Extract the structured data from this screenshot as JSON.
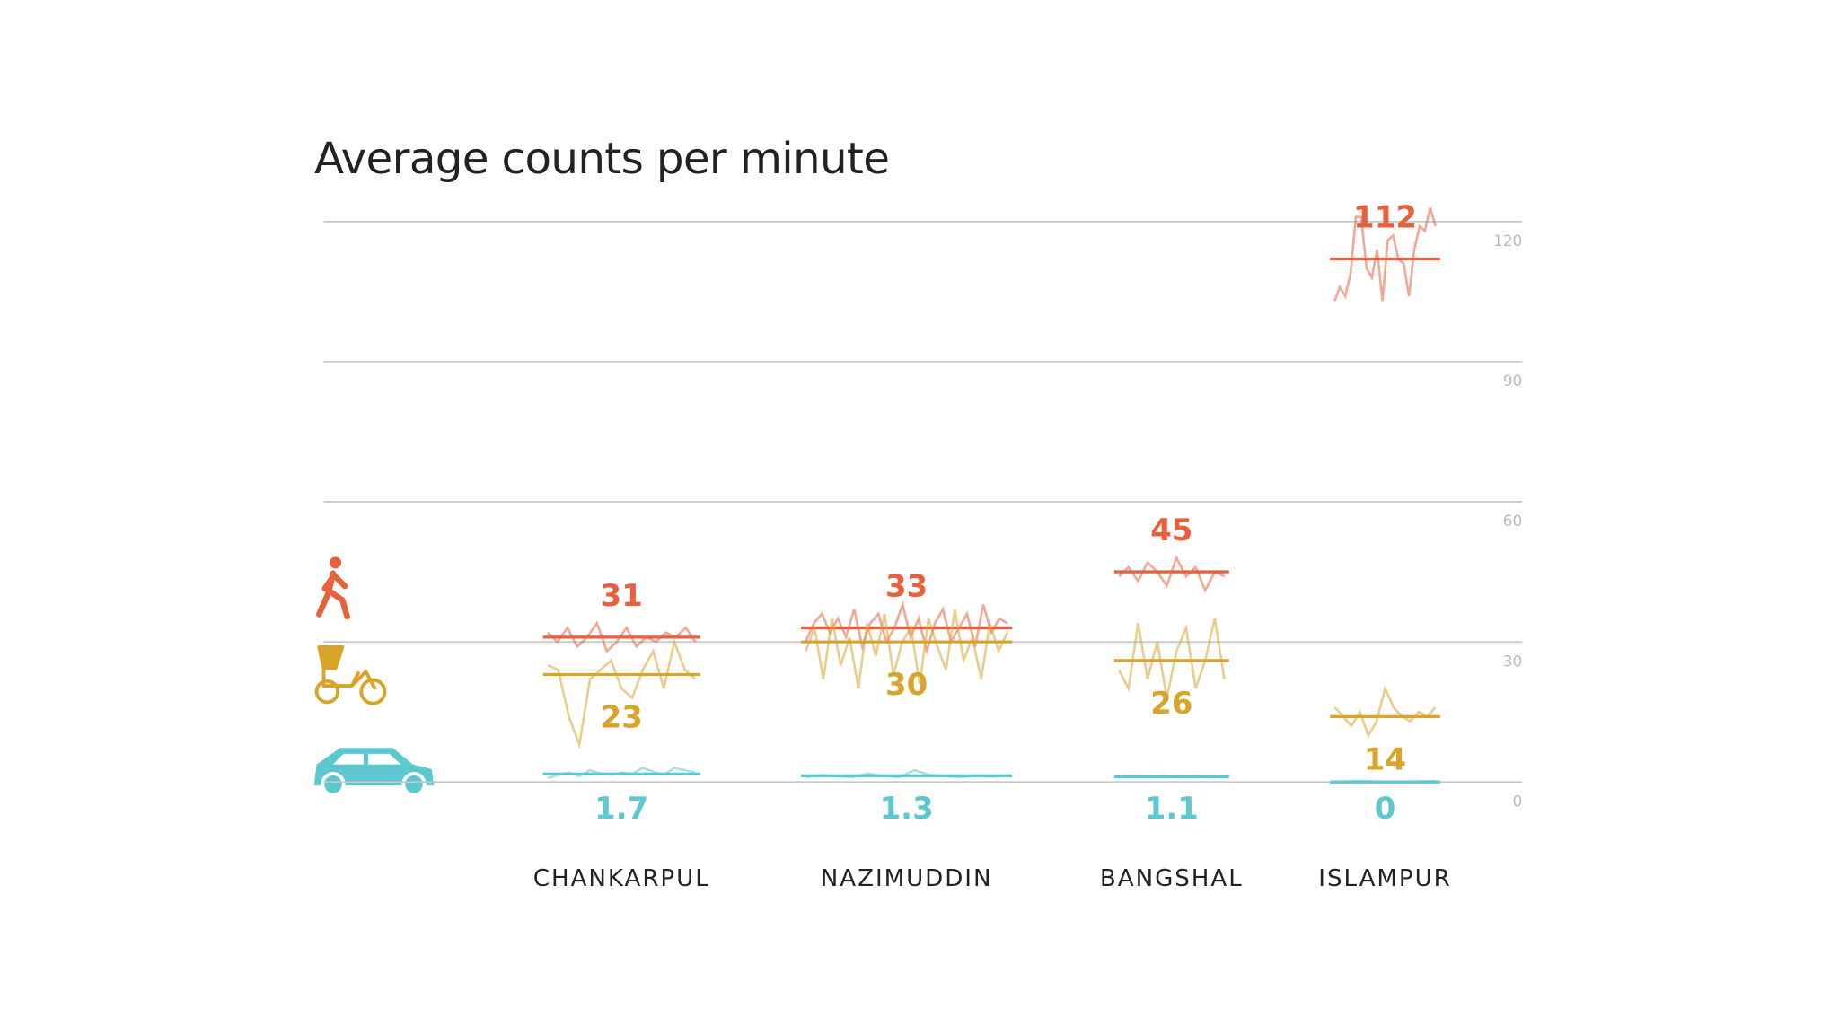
{
  "chart_data": {
    "type": "trace-means",
    "title": "Average counts per minute",
    "categories": [
      "CHANKARPUL",
      "NAZIMUDDIN",
      "BANGSHAL",
      "ISLAMPUR"
    ],
    "ylim": [
      0,
      120
    ],
    "yticks": [
      0,
      30,
      60,
      90,
      120
    ],
    "grid": true,
    "series": [
      {
        "color": "#e8603c",
        "values": [
          31,
          33,
          45,
          112
        ],
        "traces": [
          [
            32,
            30,
            33,
            29,
            31,
            34,
            28,
            30,
            33,
            29,
            31,
            30,
            32,
            31,
            33,
            30
          ],
          [
            30,
            34,
            36,
            32,
            35,
            31,
            37,
            29,
            34,
            36,
            30,
            33,
            38,
            31,
            35,
            28,
            34,
            37,
            30,
            33,
            36,
            29,
            38,
            32,
            35,
            34
          ],
          [
            44,
            46,
            43,
            47,
            45,
            42,
            48,
            44,
            46,
            41,
            45,
            44
          ],
          [
            103,
            106,
            104,
            109,
            121,
            121,
            110,
            108,
            114,
            103,
            116,
            117,
            112,
            111,
            104,
            114,
            119,
            118,
            123,
            119
          ]
        ]
      },
      {
        "color": "#d9a42a",
        "values": [
          23,
          30,
          26,
          14
        ],
        "traces": [
          [
            25,
            24,
            14,
            8,
            22,
            24,
            26,
            20,
            18,
            24,
            28,
            20,
            30,
            24,
            22
          ],
          [
            28,
            33,
            22,
            35,
            25,
            31,
            20,
            34,
            27,
            36,
            23,
            30,
            33,
            21,
            35,
            29,
            24,
            37,
            26,
            31,
            22,
            34,
            28,
            32
          ],
          [
            24,
            20,
            34,
            22,
            30,
            18,
            28,
            33,
            20,
            26,
            35,
            22
          ],
          [
            16,
            14,
            12,
            15,
            10,
            13,
            20,
            16,
            14,
            13,
            15,
            14,
            16
          ]
        ]
      },
      {
        "color": "#5ec8d0",
        "values": [
          1.7,
          1.3,
          1.1,
          0
        ],
        "traces": [
          [
            0.8,
            1.5,
            2,
            1.2,
            2.5,
            1.8,
            1.5,
            2,
            1.7,
            3,
            2.2,
            1.5,
            3,
            2.5,
            2
          ],
          [
            1,
            1.5,
            1.2,
            1,
            1.8,
            1.3,
            1,
            2.5,
            1.5,
            1.2,
            1,
            1.3,
            1.1,
            1.4
          ],
          [
            1,
            1.2,
            1.1,
            1.3,
            1,
            1.2,
            1,
            1.1
          ],
          [
            0,
            0.2,
            0.1,
            0,
            0.1,
            0.2
          ]
        ]
      }
    ]
  }
}
